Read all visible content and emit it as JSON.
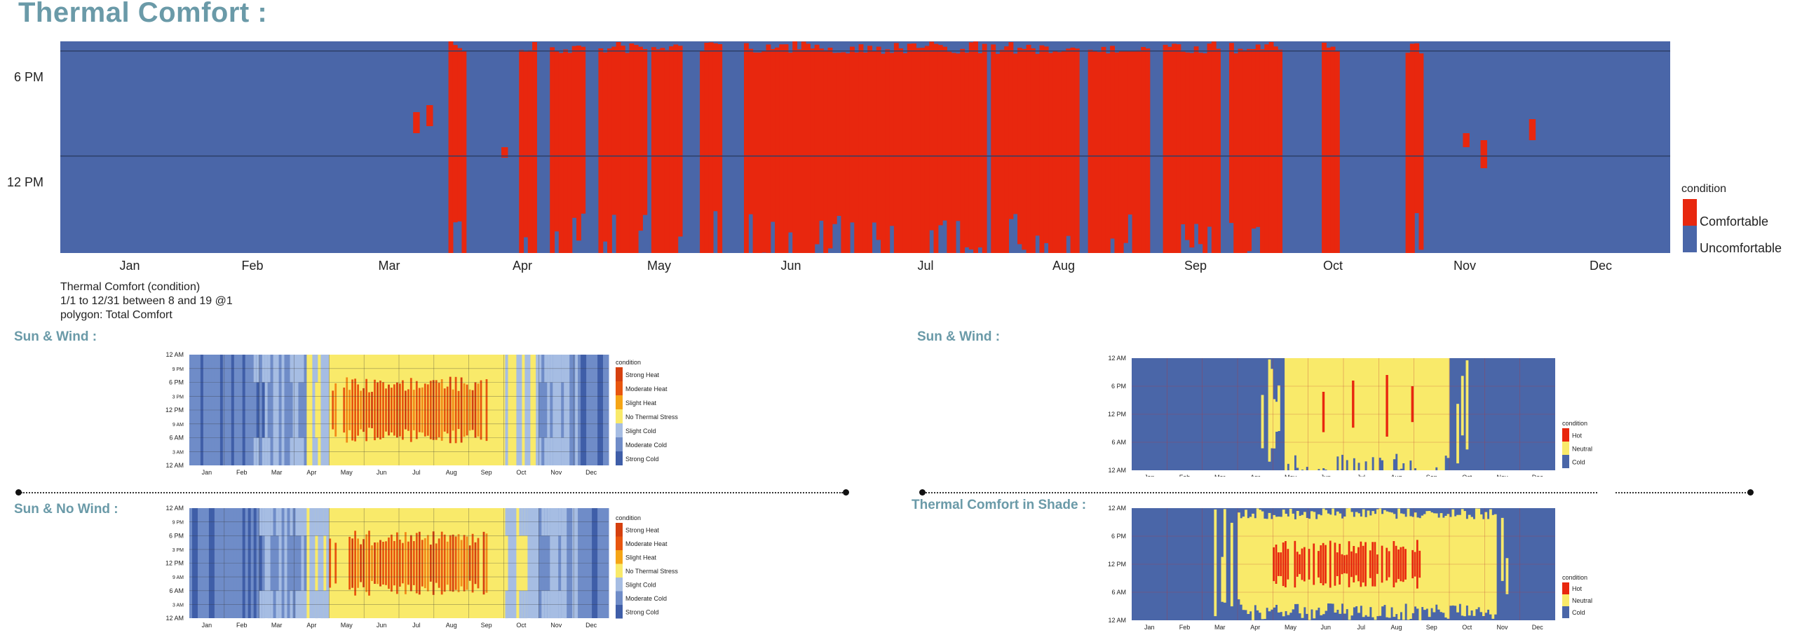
{
  "page": {
    "title": "Thermal Comfort :"
  },
  "colors": {
    "blue": "#4a66a8",
    "red": "#e8270e",
    "lightblue": "#a6bde3",
    "midblue": "#6f8cc8",
    "yellow": "#f9ea6a",
    "lightyellow": "#f4f0b0",
    "orange": "#f28a19",
    "strongheat": "#d5400f"
  },
  "chart_data": [
    {
      "id": "main",
      "type": "heatmap",
      "title": "Thermal Comfort :",
      "x": [
        "Jan",
        "Feb",
        "Mar",
        "Apr",
        "May",
        "Jun",
        "Jul",
        "Aug",
        "Sep",
        "Oct",
        "Nov",
        "Dec"
      ],
      "y_ticks": [
        "6 PM",
        "12 PM"
      ],
      "legend_title": "condition",
      "legend": [
        {
          "label": "Comfortable",
          "color": "#e8270e"
        },
        {
          "label": "Uncomfortable",
          "color": "#4a66a8"
        }
      ],
      "note": [
        "Thermal Comfort (condition)",
        "1/1 to 12/31 between 8 and 19 @1",
        "polygon: Total Comfort"
      ],
      "hours": [
        8,
        19
      ],
      "comfortable_days": [
        [
          88,
          91
        ],
        [
          104,
          107
        ],
        [
          111,
          118
        ],
        [
          122,
          132
        ],
        [
          134,
          140
        ],
        [
          145,
          149
        ],
        [
          155,
          209
        ],
        [
          211,
          230
        ],
        [
          233,
          246
        ],
        [
          250,
          262
        ],
        [
          265,
          276
        ],
        [
          286,
          289
        ],
        [
          305,
          308
        ]
      ]
    },
    {
      "id": "sun_wind",
      "type": "heatmap",
      "section": "Sun & Wind :",
      "x": [
        "Jan",
        "Feb",
        "Mar",
        "Apr",
        "May",
        "Jun",
        "Jul",
        "Aug",
        "Sep",
        "Oct",
        "Nov",
        "Dec"
      ],
      "y_ticks": [
        "12 AM",
        "9 PM",
        "6 PM",
        "3 PM",
        "12 PM",
        "9 AM",
        "6 AM",
        "3 AM",
        "12 AM"
      ],
      "legend_title": "condition",
      "legend": [
        {
          "label": "Strong Heat",
          "color": "#d5400f"
        },
        {
          "label": "Moderate Heat",
          "color": "#e8560f"
        },
        {
          "label": "Slight Heat",
          "color": "#f5a516"
        },
        {
          "label": "No Thermal Stress",
          "color": "#f9ea6a"
        },
        {
          "label": "Slight Cold",
          "color": "#a6bde3"
        },
        {
          "label": "Moderate Cold",
          "color": "#6f8cc8"
        },
        {
          "label": "Strong Cold",
          "color": "#3f5ea8"
        }
      ]
    },
    {
      "id": "sun_no_wind",
      "type": "heatmap",
      "section": "Sun & No Wind :",
      "x": [
        "Jan",
        "Feb",
        "Mar",
        "Apr",
        "May",
        "Jun",
        "Jul",
        "Aug",
        "Sep",
        "Oct",
        "Nov",
        "Dec"
      ],
      "y_ticks": [
        "12 AM",
        "9 PM",
        "6 PM",
        "3 PM",
        "12 PM",
        "9 AM",
        "6 AM",
        "3 AM",
        "12 AM"
      ],
      "legend_title": "condition",
      "legend": [
        {
          "label": "Strong Heat",
          "color": "#d5400f"
        },
        {
          "label": "Moderate Heat",
          "color": "#e8560f"
        },
        {
          "label": "Slight Heat",
          "color": "#f5a516"
        },
        {
          "label": "No Thermal Stress",
          "color": "#f9ea6a"
        },
        {
          "label": "Slight Cold",
          "color": "#a6bde3"
        },
        {
          "label": "Moderate Cold",
          "color": "#6f8cc8"
        },
        {
          "label": "Strong Cold",
          "color": "#3f5ea8"
        }
      ]
    },
    {
      "id": "sun_wind_right",
      "type": "heatmap",
      "section": "Sun & Wind :",
      "x": [
        "Jan",
        "Feb",
        "Mar",
        "Apr",
        "May",
        "Jun",
        "Jul",
        "Aug",
        "Sep",
        "Oct",
        "Nov",
        "Dec"
      ],
      "y_ticks": [
        "12 AM",
        "6 PM",
        "12 PM",
        "6 AM",
        "12 AM"
      ],
      "legend_title": "condition",
      "legend": [
        {
          "label": "Hot",
          "color": "#e8270e"
        },
        {
          "label": "Neutral",
          "color": "#f9ea6a"
        },
        {
          "label": "Cold",
          "color": "#4a66a8"
        }
      ]
    },
    {
      "id": "shade",
      "type": "heatmap",
      "section": "Thermal Comfort in Shade :",
      "x": [
        "Jan",
        "Feb",
        "Mar",
        "Apr",
        "May",
        "Jun",
        "Jul",
        "Aug",
        "Sep",
        "Oct",
        "Nov",
        "Dec"
      ],
      "y_ticks": [
        "12 AM",
        "6 PM",
        "12 PM",
        "6 AM",
        "12 AM"
      ],
      "legend_title": "condition",
      "legend": [
        {
          "label": "Hot",
          "color": "#e8270e"
        },
        {
          "label": "Neutral",
          "color": "#f9ea6a"
        },
        {
          "label": "Cold",
          "color": "#4a66a8"
        }
      ]
    }
  ]
}
